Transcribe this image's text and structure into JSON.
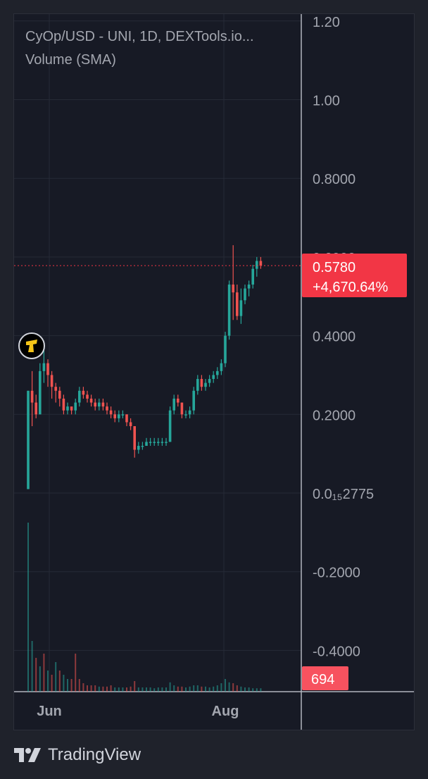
{
  "legend": {
    "title": "CyOp/USD - UNI, 1D, DEXTools.io...",
    "volume": "Volume (SMA)"
  },
  "price_label": {
    "value": "0.5780",
    "change": "+4,670.64%",
    "color": "#f23645"
  },
  "volume_label": {
    "value": "694",
    "color": "#f7525f"
  },
  "footer": {
    "brand": "TradingView",
    "icon": "tradingview-logo-icon"
  },
  "colors": {
    "up": "#26a69a",
    "down": "#ef5350",
    "background": "#171a25",
    "grid": "#262a36"
  },
  "chart_data": {
    "type": "candlestick",
    "title": "CyOp/USD - UNI, 1D, DEXTools.io...",
    "ylim": [
      -0.47,
      1.23
    ],
    "y_ticks": [
      "1.20",
      "1.00",
      "0.8000",
      "0.6000",
      "0.4000",
      "0.2000",
      "0.0₁₅2775",
      "-0.2000",
      "-0.4000"
    ],
    "x_ticks": [
      "Jun",
      "Aug"
    ],
    "grid": true,
    "last_price": 0.578,
    "candles": [
      [
        0.01,
        0.26,
        0.01,
        0.26
      ],
      [
        0.26,
        0.31,
        0.17,
        0.23
      ],
      [
        0.23,
        0.25,
        0.19,
        0.2
      ],
      [
        0.2,
        0.33,
        0.2,
        0.31
      ],
      [
        0.31,
        0.37,
        0.28,
        0.33
      ],
      [
        0.33,
        0.34,
        0.27,
        0.3
      ],
      [
        0.3,
        0.31,
        0.24,
        0.27
      ],
      [
        0.27,
        0.28,
        0.23,
        0.26
      ],
      [
        0.26,
        0.27,
        0.22,
        0.24
      ],
      [
        0.24,
        0.25,
        0.2,
        0.21
      ],
      [
        0.21,
        0.23,
        0.2,
        0.22
      ],
      [
        0.22,
        0.22,
        0.2,
        0.21
      ],
      [
        0.21,
        0.24,
        0.2,
        0.23
      ],
      [
        0.23,
        0.27,
        0.22,
        0.26
      ],
      [
        0.26,
        0.27,
        0.24,
        0.25
      ],
      [
        0.25,
        0.26,
        0.23,
        0.24
      ],
      [
        0.24,
        0.25,
        0.22,
        0.23
      ],
      [
        0.23,
        0.24,
        0.21,
        0.22
      ],
      [
        0.22,
        0.24,
        0.21,
        0.23
      ],
      [
        0.23,
        0.24,
        0.21,
        0.22
      ],
      [
        0.22,
        0.23,
        0.2,
        0.21
      ],
      [
        0.21,
        0.22,
        0.19,
        0.2
      ],
      [
        0.2,
        0.21,
        0.18,
        0.19
      ],
      [
        0.19,
        0.21,
        0.18,
        0.2
      ],
      [
        0.2,
        0.21,
        0.19,
        0.2
      ],
      [
        0.2,
        0.2,
        0.17,
        0.18
      ],
      [
        0.18,
        0.19,
        0.16,
        0.17
      ],
      [
        0.17,
        0.17,
        0.09,
        0.11
      ],
      [
        0.11,
        0.13,
        0.1,
        0.12
      ],
      [
        0.12,
        0.13,
        0.11,
        0.12
      ],
      [
        0.12,
        0.14,
        0.12,
        0.13
      ],
      [
        0.13,
        0.14,
        0.12,
        0.13
      ],
      [
        0.13,
        0.14,
        0.12,
        0.13
      ],
      [
        0.13,
        0.14,
        0.12,
        0.13
      ],
      [
        0.13,
        0.14,
        0.12,
        0.13
      ],
      [
        0.13,
        0.14,
        0.12,
        0.13
      ],
      [
        0.13,
        0.22,
        0.13,
        0.21
      ],
      [
        0.21,
        0.25,
        0.2,
        0.24
      ],
      [
        0.24,
        0.25,
        0.22,
        0.23
      ],
      [
        0.23,
        0.23,
        0.19,
        0.2
      ],
      [
        0.2,
        0.21,
        0.19,
        0.2
      ],
      [
        0.2,
        0.22,
        0.19,
        0.21
      ],
      [
        0.21,
        0.27,
        0.2,
        0.26
      ],
      [
        0.26,
        0.3,
        0.25,
        0.29
      ],
      [
        0.29,
        0.3,
        0.26,
        0.27
      ],
      [
        0.27,
        0.29,
        0.26,
        0.28
      ],
      [
        0.28,
        0.3,
        0.27,
        0.29
      ],
      [
        0.29,
        0.31,
        0.28,
        0.3
      ],
      [
        0.3,
        0.32,
        0.29,
        0.31
      ],
      [
        0.31,
        0.34,
        0.3,
        0.33
      ],
      [
        0.33,
        0.41,
        0.32,
        0.4
      ],
      [
        0.4,
        0.54,
        0.39,
        0.53
      ],
      [
        0.53,
        0.63,
        0.44,
        0.51
      ],
      [
        0.51,
        0.53,
        0.44,
        0.45
      ],
      [
        0.45,
        0.52,
        0.43,
        0.49
      ],
      [
        0.49,
        0.53,
        0.48,
        0.52
      ],
      [
        0.52,
        0.54,
        0.5,
        0.53
      ],
      [
        0.53,
        0.58,
        0.52,
        0.57
      ],
      [
        0.57,
        0.6,
        0.55,
        0.59
      ],
      [
        0.59,
        0.6,
        0.57,
        0.578
      ]
    ],
    "volumes": [
      [
        4.0,
        1
      ],
      [
        1.2,
        1
      ],
      [
        0.8,
        0
      ],
      [
        0.6,
        1
      ],
      [
        0.9,
        0
      ],
      [
        0.5,
        1
      ],
      [
        0.4,
        0
      ],
      [
        0.7,
        1
      ],
      [
        0.5,
        0
      ],
      [
        0.4,
        1
      ],
      [
        0.3,
        1
      ],
      [
        0.3,
        0
      ],
      [
        0.9,
        0
      ],
      [
        0.3,
        0
      ],
      [
        0.2,
        0
      ],
      [
        0.15,
        0
      ],
      [
        0.15,
        0
      ],
      [
        0.15,
        0
      ],
      [
        0.12,
        1
      ],
      [
        0.12,
        0
      ],
      [
        0.12,
        0
      ],
      [
        0.15,
        0
      ],
      [
        0.1,
        1
      ],
      [
        0.1,
        1
      ],
      [
        0.1,
        1
      ],
      [
        0.1,
        0
      ],
      [
        0.12,
        0
      ],
      [
        0.25,
        0
      ],
      [
        0.1,
        1
      ],
      [
        0.1,
        1
      ],
      [
        0.1,
        1
      ],
      [
        0.1,
        1
      ],
      [
        0.08,
        1
      ],
      [
        0.1,
        1
      ],
      [
        0.1,
        1
      ],
      [
        0.1,
        1
      ],
      [
        0.22,
        1
      ],
      [
        0.15,
        1
      ],
      [
        0.12,
        0
      ],
      [
        0.12,
        0
      ],
      [
        0.1,
        1
      ],
      [
        0.12,
        1
      ],
      [
        0.15,
        1
      ],
      [
        0.15,
        1
      ],
      [
        0.12,
        0
      ],
      [
        0.12,
        1
      ],
      [
        0.1,
        1
      ],
      [
        0.12,
        1
      ],
      [
        0.15,
        1
      ],
      [
        0.2,
        1
      ],
      [
        0.3,
        1
      ],
      [
        0.22,
        1
      ],
      [
        0.2,
        0
      ],
      [
        0.15,
        0
      ],
      [
        0.12,
        1
      ],
      [
        0.1,
        1
      ],
      [
        0.1,
        1
      ],
      [
        0.08,
        1
      ],
      [
        0.08,
        1
      ],
      [
        0.08,
        1
      ]
    ]
  }
}
